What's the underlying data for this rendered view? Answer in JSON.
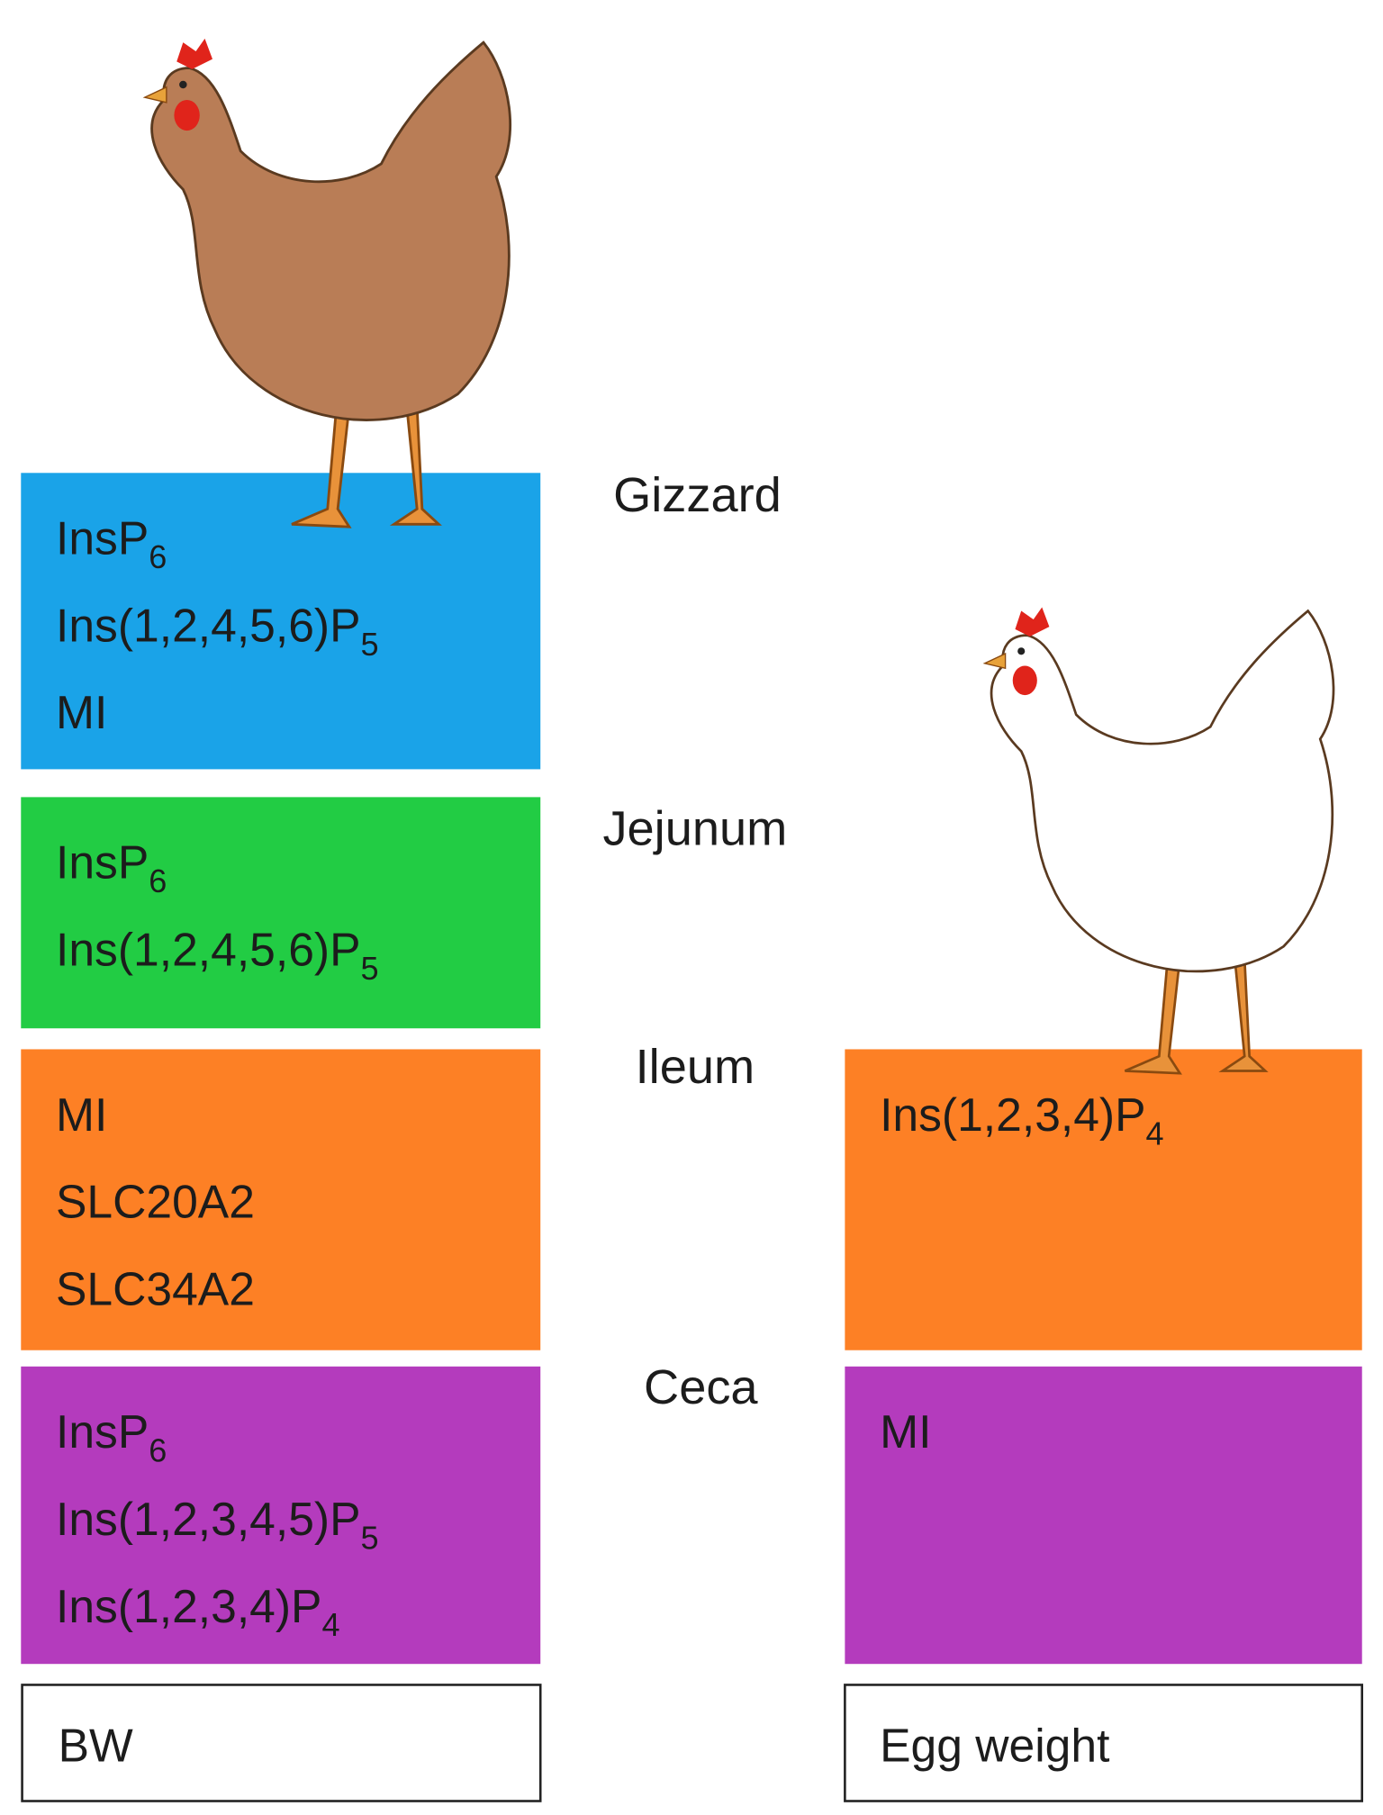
{
  "segment_labels": [
    "Gizzard",
    "Jejunum",
    "Ileum",
    "Ceca"
  ],
  "left_column": {
    "boxes": [
      {
        "items": [
          {
            "text": "InsP",
            "sub": "6"
          },
          {
            "text": "Ins(1,2,4,5,6)P",
            "sub": "5"
          },
          {
            "text": "MI"
          }
        ]
      },
      {
        "items": [
          {
            "text": "InsP",
            "sub": "6"
          },
          {
            "text": "Ins(1,2,4,5,6)P",
            "sub": "5"
          }
        ]
      },
      {
        "items": [
          {
            "text": "MI"
          },
          {
            "text": "SLC20A2"
          },
          {
            "text": "SLC34A2"
          }
        ]
      },
      {
        "items": [
          {
            "text": "InsP",
            "sub": "6"
          },
          {
            "text": "Ins(1,2,3,4,5)P",
            "sub": "5"
          },
          {
            "text": "Ins(1,2,3,4)P",
            "sub": "4"
          }
        ]
      }
    ],
    "footer": "BW"
  },
  "right_column": {
    "boxes": [
      {
        "items": [
          {
            "text": "Ins(1,2,3,4)P",
            "sub": "4"
          }
        ]
      },
      {
        "items": [
          {
            "text": "MI"
          }
        ]
      }
    ],
    "footer": "Egg weight"
  }
}
